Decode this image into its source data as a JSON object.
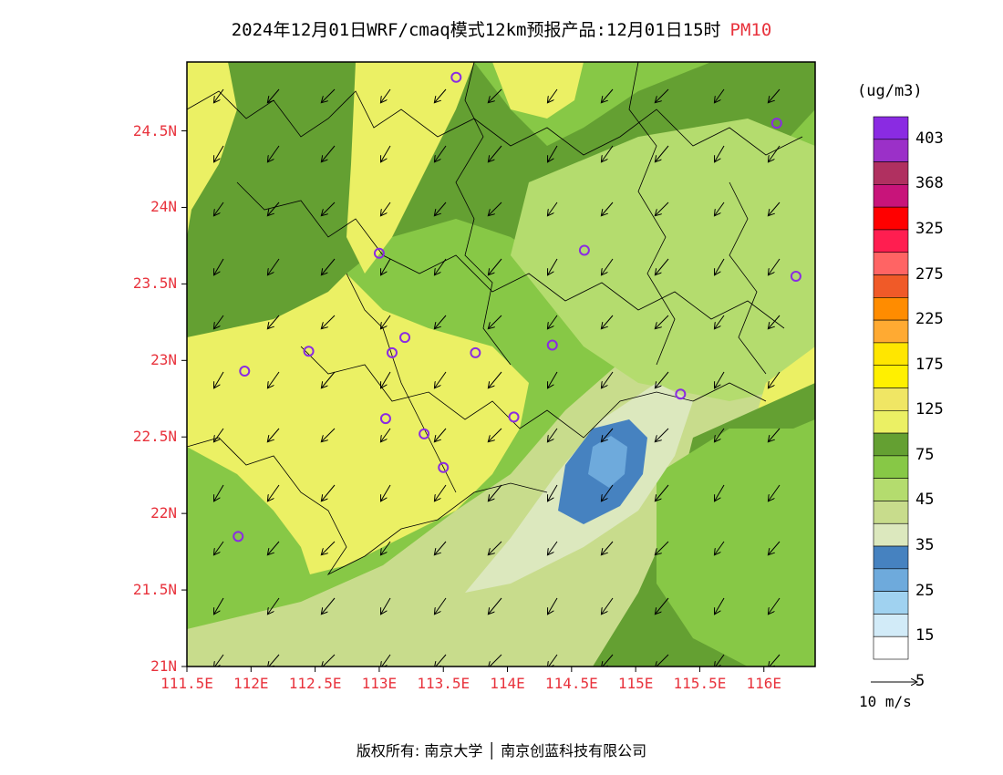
{
  "title": {
    "text": "2024年12月01日WRF/cmaq模式12km预报产品:12月01日15时",
    "pollutant": "PM10"
  },
  "axes": {
    "lat_labels": [
      "24.5N",
      "24N",
      "23.5N",
      "23N",
      "22.5N",
      "22N",
      "21.5N",
      "21N"
    ],
    "lat_values": [
      24.5,
      24,
      23.5,
      23,
      22.5,
      22,
      21.5,
      21
    ],
    "lon_labels": [
      "111.5E",
      "112E",
      "112.5E",
      "113E",
      "113.5E",
      "114E",
      "114.5E",
      "115E",
      "115.5E",
      "116E"
    ],
    "lon_values": [
      111.5,
      112,
      112.5,
      113,
      113.5,
      114,
      114.5,
      115,
      115.5,
      116
    ],
    "lon_range": [
      111.5,
      116.4
    ],
    "lat_range": [
      21,
      24.95
    ]
  },
  "legend": {
    "unit": "(ug/m3)",
    "labels": [
      "403",
      "368",
      "325",
      "275",
      "225",
      "175",
      "125",
      "75",
      "45",
      "35",
      "25",
      "15",
      "5"
    ],
    "colors": [
      "#8a2be2",
      "#9b30c8",
      "#b03060",
      "#c8147a",
      "#ff0000",
      "#ff1e50",
      "#ff6464",
      "#f05a28",
      "#ff8c00",
      "#ffaa32",
      "#ffe600",
      "#fff000",
      "#f0e664",
      "#ebf064",
      "#64a032",
      "#87c846",
      "#b4dc6e",
      "#c8dc8c",
      "#dce8be",
      "#4682c0",
      "#6eaadc",
      "#a0d2f0",
      "#d2ebf8",
      "#ffffff"
    ]
  },
  "wind_reference": {
    "label": "10 m/s"
  },
  "stations": [
    [
      113.6,
      24.85
    ],
    [
      116.1,
      24.55
    ],
    [
      113.0,
      23.7
    ],
    [
      114.6,
      23.72
    ],
    [
      116.25,
      23.55
    ],
    [
      112.45,
      23.06
    ],
    [
      111.95,
      22.93
    ],
    [
      113.1,
      23.05
    ],
    [
      113.2,
      23.15
    ],
    [
      113.75,
      23.05
    ],
    [
      114.35,
      23.1
    ],
    [
      115.35,
      22.78
    ],
    [
      113.05,
      22.62
    ],
    [
      113.35,
      22.52
    ],
    [
      114.05,
      22.63
    ],
    [
      113.5,
      22.3
    ],
    [
      111.9,
      21.85
    ]
  ],
  "copyright": "版权所有: 南京大学 │ 南京创蓝科技有限公司"
}
